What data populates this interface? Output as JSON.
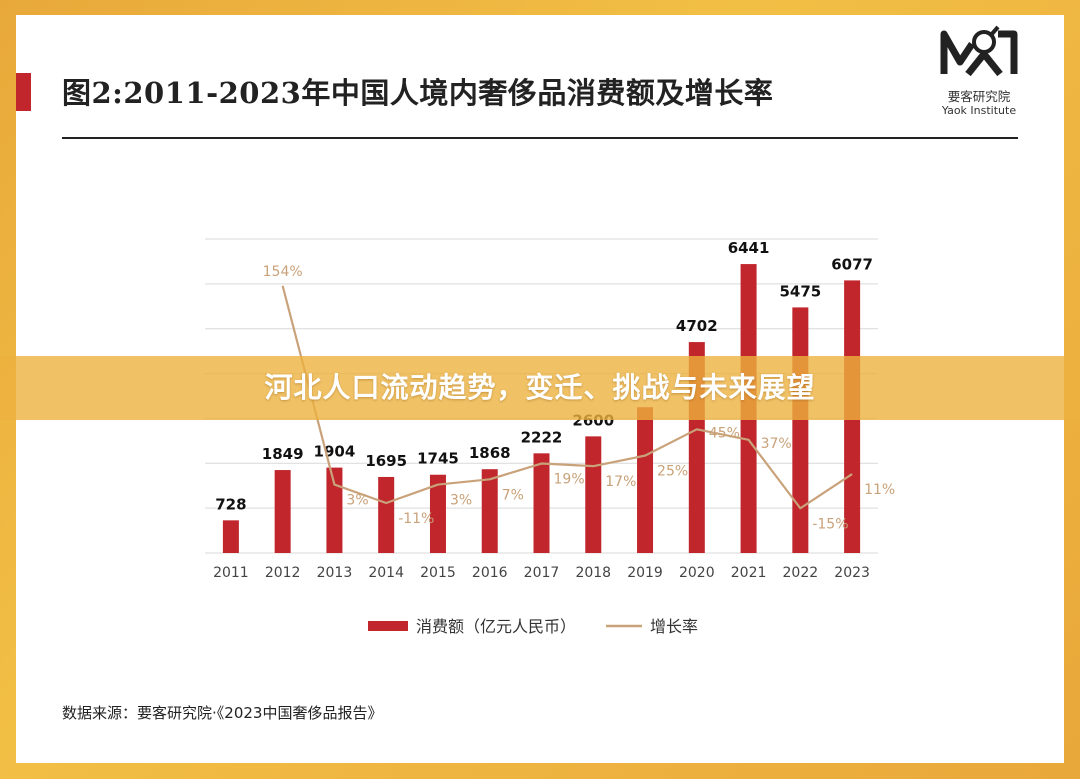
{
  "header": {
    "title": "图2:2011-2023年中国人境内奢侈品消费额及增长率"
  },
  "logo": {
    "cn": "要客研究院",
    "en": "Yaok Institute"
  },
  "banner": {
    "text": "河北人口流动趋势，变迁、挑战与未来展望"
  },
  "source": {
    "text": "数据来源：要客研究院·《2023中国奢侈品报告》"
  },
  "colors": {
    "bar": "#c0262c",
    "line": "#c9a27a",
    "frame": "#eeb03e"
  },
  "chart_data": {
    "type": "bar",
    "title": "图2:2011-2023年中国人境内奢侈品消费额及增长率",
    "categories": [
      "2011",
      "2012",
      "2013",
      "2014",
      "2015",
      "2016",
      "2017",
      "2018",
      "2019",
      "2020",
      "2021",
      "2022",
      "2023"
    ],
    "series": [
      {
        "name": "消费额（亿元人民币）",
        "type": "bar",
        "values": [
          728,
          1849,
          1904,
          1695,
          1745,
          1868,
          2222,
          2600,
          3250,
          4702,
          6441,
          5475,
          6077
        ],
        "labels": [
          "728",
          "1849",
          "1904",
          "1695",
          "1745",
          "1868",
          "2222",
          "2600",
          "",
          "4702",
          "6441",
          "5475",
          "6077"
        ]
      },
      {
        "name": "增长率",
        "type": "line",
        "values": [
          null,
          154,
          3,
          -11,
          3,
          7,
          19,
          17,
          25,
          45,
          37,
          -15,
          11
        ],
        "labels": [
          "",
          "154%",
          "3%",
          "-11%",
          "3%",
          "7%",
          "19%",
          "17%",
          "25%",
          "45%",
          "37%",
          "-15%",
          "11%"
        ]
      }
    ],
    "ylim": [
      0,
      7000
    ],
    "growth_range": [
      -30,
      160
    ],
    "grid": true,
    "legend": "bottom-center"
  }
}
